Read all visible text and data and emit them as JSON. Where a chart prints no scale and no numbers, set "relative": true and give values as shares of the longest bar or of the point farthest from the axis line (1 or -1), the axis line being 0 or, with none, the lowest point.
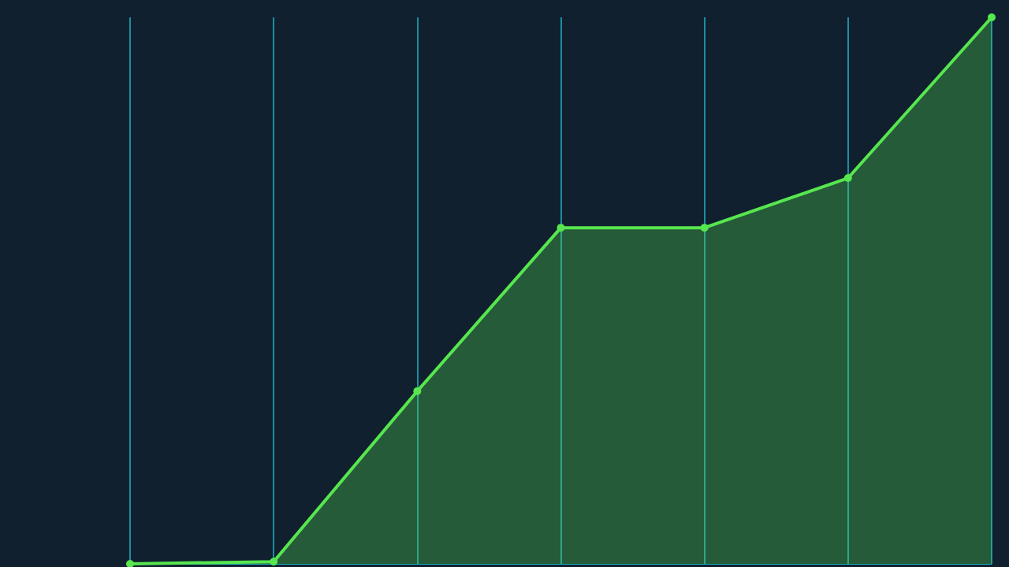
{
  "chart_data": {
    "type": "area",
    "relative": true,
    "categories": [
      null,
      null,
      null,
      null,
      null,
      null,
      null
    ],
    "series": [
      {
        "color": "#57e64f",
        "values": [
          0,
          0.004,
          0.316,
          0.615,
          0.615,
          0.706,
          1
        ]
      }
    ],
    "tick_labels": false,
    "marker": "circle",
    "grid": "x",
    "line_style": "solid"
  }
}
